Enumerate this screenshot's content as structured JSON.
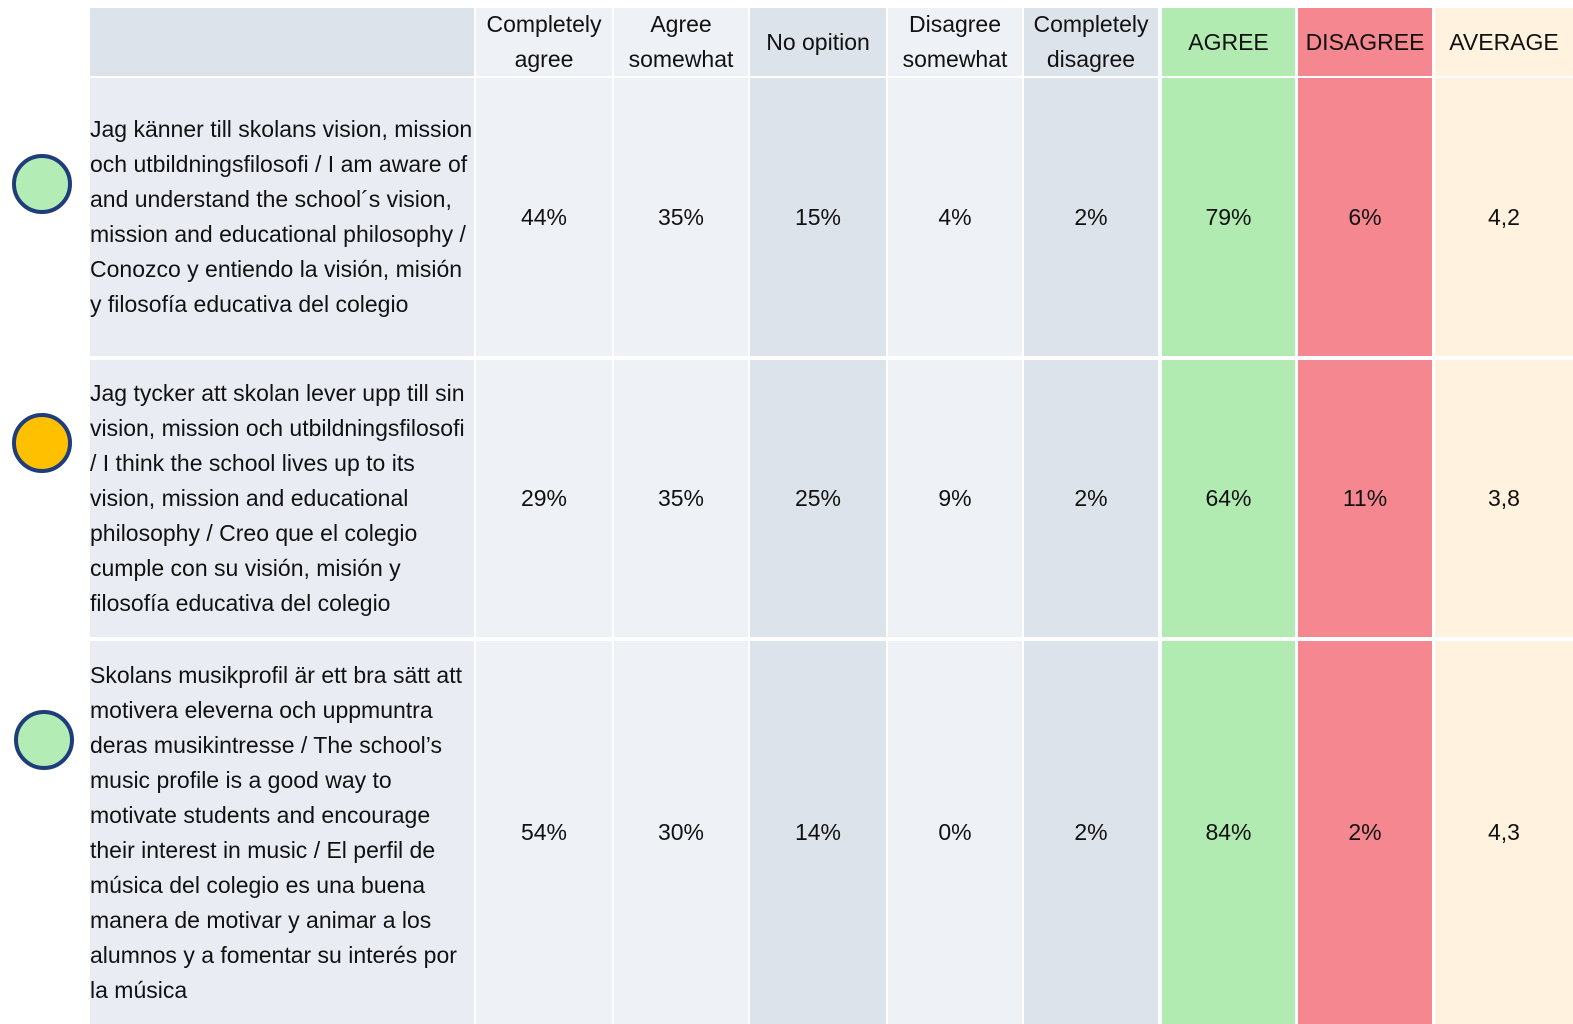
{
  "table": {
    "header": [
      "",
      "Completely agree",
      "Agree somewhat",
      "No opition",
      "Disagree somewhat",
      "Completely disagree",
      "AGREE",
      "DISAGREE",
      "AVERAGE"
    ],
    "rows": [
      [
        "Jag känner till skolans vision, mission och utbildningsfilosofi / I am aware of and understand the school´s vision, mission and educational philosophy / Conozco y entiendo la visión, misión y filosofía educativa del colegio",
        "44%",
        "35%",
        "15%",
        "4%",
        "2%",
        "79%",
        "6%",
        "4,2"
      ],
      [
        "Jag tycker att skolan lever upp till sin vision, mission och utbildningsfilosofi / I think the school lives up to its vision, mission and educational philosophy / Creo que el colegio cumple con su visión, misión y filosofía educativa del colegio",
        "29%",
        "35%",
        "25%",
        "9%",
        "2%",
        "64%",
        "11%",
        "3,8"
      ],
      [
        "Skolans musikprofil är ett bra sätt att motivera eleverna och uppmuntra deras musikintresse / The school’s music profile is a good way to motivate students and encourage their interest in music / El perfil de música del colegio es una buena manera de motivar y animar a los alumnos y a fomentar su interés por la música",
        "54%",
        "30%",
        "14%",
        "0%",
        "2%",
        "84%",
        "2%",
        "4,3"
      ]
    ]
  }
}
